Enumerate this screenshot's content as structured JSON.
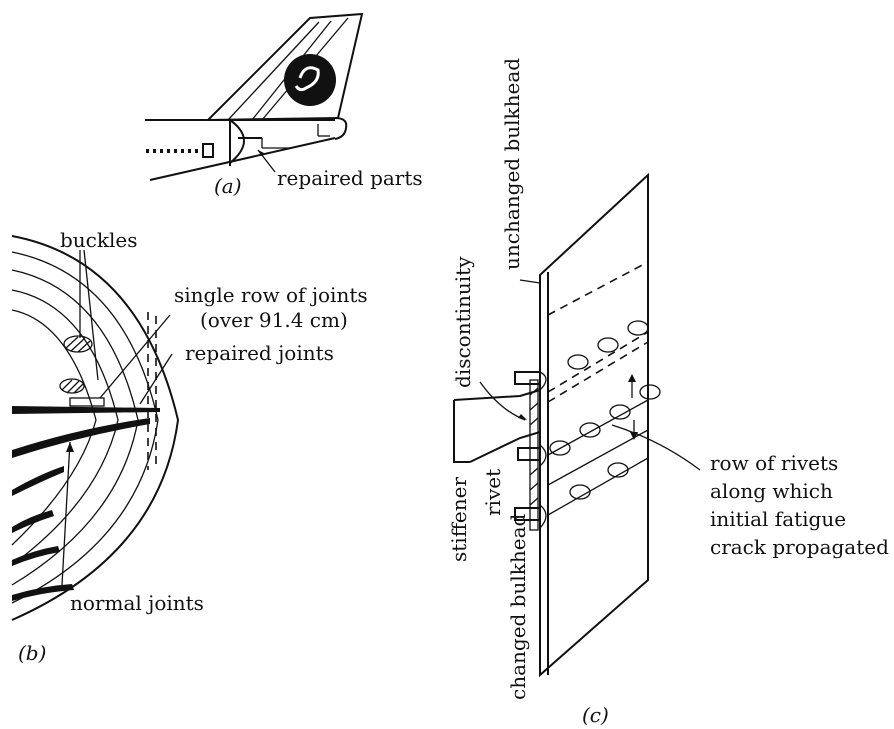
{
  "panel_a": {
    "caption": "(a)",
    "label_repaired_parts": "repaired parts"
  },
  "panel_b": {
    "caption": "(b)",
    "label_buckles": "buckles",
    "label_single_row": "single row of joints",
    "label_single_row_sub": "(over 91.4 cm)",
    "label_repaired_joints": "repaired joints",
    "label_normal_joints": "normal joints"
  },
  "panel_c": {
    "caption": "(c)",
    "label_unchanged_bulkhead": "unchanged bulkhead",
    "label_discontinuity": "discontinuity",
    "label_stiffener": "stiffener",
    "label_rivet": "rivet",
    "label_changed_bulkhead": "changed bulkhead",
    "label_rivet_row_1": "row of rivets",
    "label_rivet_row_2": "along which",
    "label_rivet_row_3": "initial fatigue",
    "label_rivet_row_4": "crack propagated"
  }
}
